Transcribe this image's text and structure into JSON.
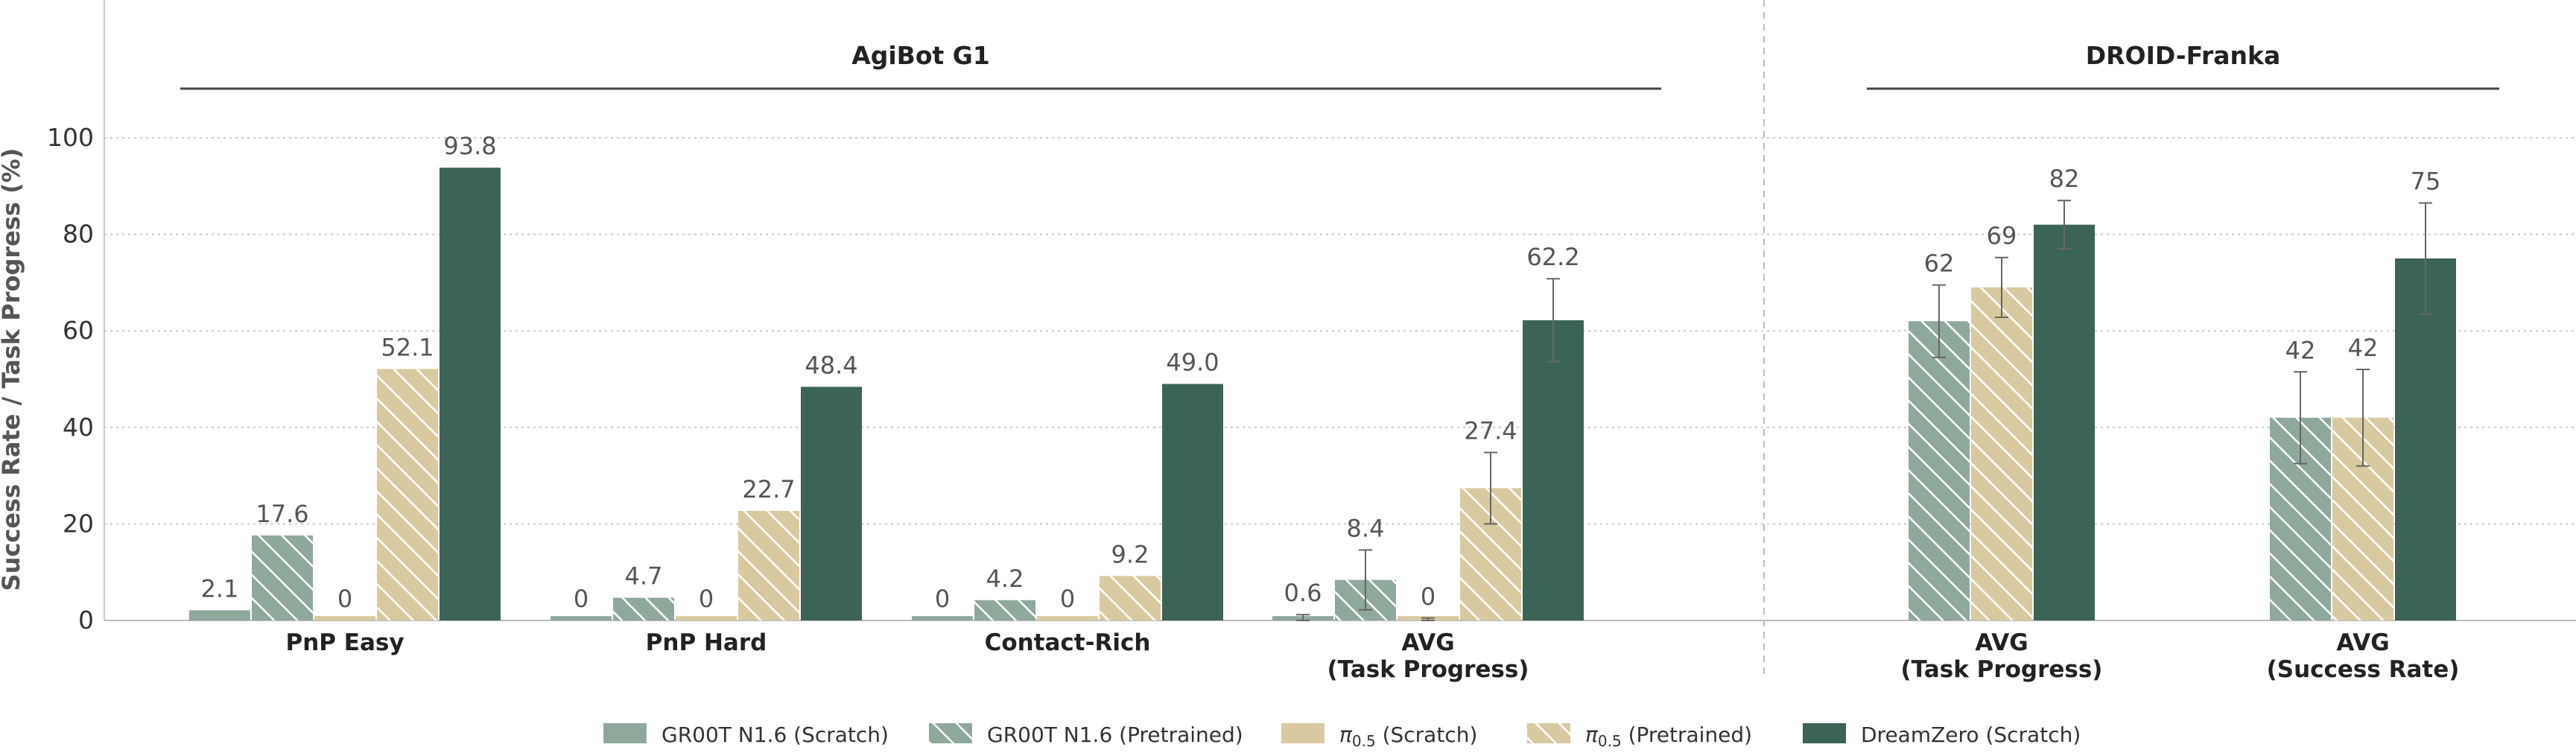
{
  "chart_data": {
    "type": "bar",
    "ylabel": "Success Rate / Task Progress (%)",
    "ylim": [
      0,
      110
    ],
    "yticks": [
      0,
      20,
      40,
      60,
      80,
      100
    ],
    "grid": true,
    "legend_position": "bottom",
    "groups": [
      {
        "title": "AgiBot G1",
        "category_indices": [
          0,
          1,
          2,
          3
        ]
      },
      {
        "title": "DROID-Franka",
        "category_indices": [
          4,
          5
        ]
      }
    ],
    "categories": [
      {
        "label_lines": [
          "PnP Easy"
        ]
      },
      {
        "label_lines": [
          "PnP Hard"
        ]
      },
      {
        "label_lines": [
          "Contact-Rich"
        ]
      },
      {
        "label_lines": [
          "AVG",
          "(Task Progress)"
        ]
      },
      {
        "label_lines": [
          "AVG",
          "(Task Progress)"
        ]
      },
      {
        "label_lines": [
          "AVG",
          "(Success Rate)"
        ]
      }
    ],
    "series": [
      {
        "name": "GR00T N1.6 (Scratch)",
        "legend_main": "GR00T N1.6 (Scratch)",
        "color": "#8fa89c",
        "hatch": false,
        "values": [
          2.1,
          0,
          0,
          0.6,
          null,
          null
        ],
        "labels": [
          "2.1",
          "0",
          "0",
          "0.6",
          null,
          null
        ],
        "errors": [
          null,
          null,
          null,
          0.6,
          null,
          null
        ]
      },
      {
        "name": "GR00T N1.6 (Pretrained)",
        "legend_main": "GR00T N1.6 (Pretrained)",
        "color": "#8fa89c",
        "hatch": true,
        "values": [
          17.6,
          4.7,
          4.2,
          8.4,
          62,
          42
        ],
        "labels": [
          "17.6",
          "4.7",
          "4.2",
          "8.4",
          "62",
          "42"
        ],
        "errors": [
          null,
          null,
          null,
          6.2,
          7.5,
          9.5
        ]
      },
      {
        "name": "π0.5 (Scratch)",
        "legend_main": "π",
        "legend_sub": "0.5",
        "legend_suffix": " (Scratch)",
        "color": "#d8c9a0",
        "hatch": false,
        "values": [
          0,
          0,
          0,
          0,
          null,
          null
        ],
        "labels": [
          "0",
          "0",
          "0",
          "0",
          null,
          null
        ],
        "errors": [
          null,
          null,
          null,
          0.5,
          null,
          null
        ]
      },
      {
        "name": "π0.5 (Pretrained)",
        "legend_main": "π",
        "legend_sub": "0.5",
        "legend_suffix": " (Pretrained)",
        "color": "#d8c9a0",
        "hatch": true,
        "values": [
          52.1,
          22.7,
          9.2,
          27.4,
          69,
          42
        ],
        "labels": [
          "52.1",
          "22.7",
          "9.2",
          "27.4",
          "69",
          "42"
        ],
        "errors": [
          null,
          null,
          null,
          7.4,
          6.2,
          10
        ]
      },
      {
        "name": "DreamZero (Scratch)",
        "legend_main": "DreamZero (Scratch)",
        "color": "#3b6456",
        "hatch": false,
        "values": [
          93.8,
          48.4,
          49.0,
          62.2,
          82,
          75
        ],
        "labels": [
          "93.8",
          "48.4",
          "49.0",
          "62.2",
          "82",
          "75"
        ],
        "errors": [
          null,
          null,
          null,
          8.6,
          5.0,
          11.5
        ]
      }
    ]
  }
}
